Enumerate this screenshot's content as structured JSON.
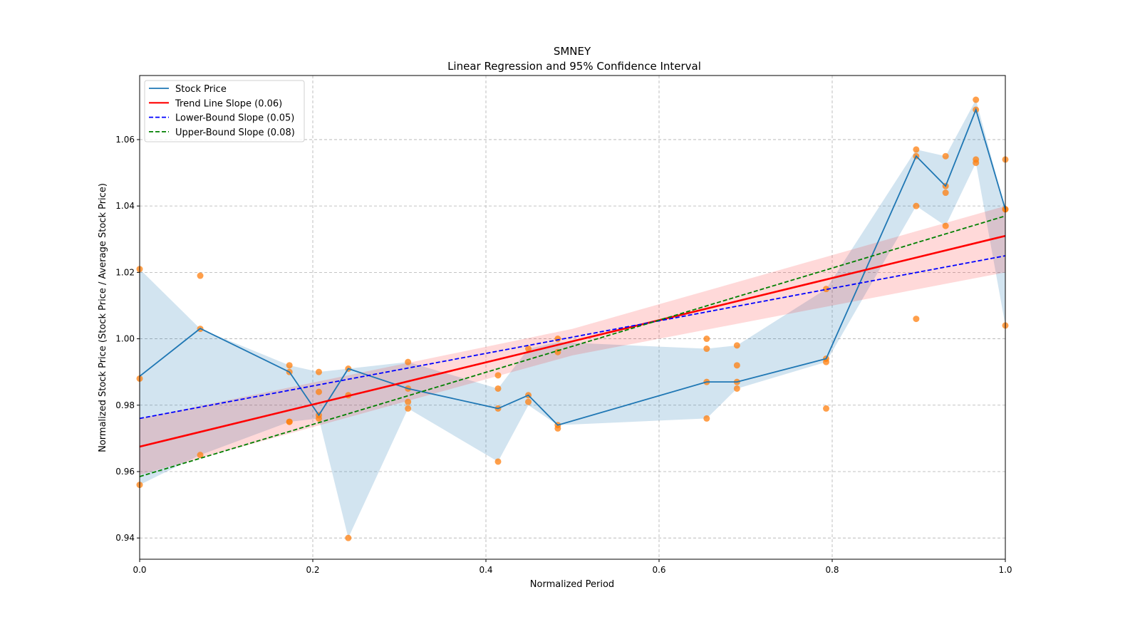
{
  "chart_data": {
    "type": "line",
    "title": "SMNEY",
    "subtitle": "Linear Regression and 95% Confidence Interval",
    "xlabel": "Normalized Period",
    "ylabel": "Normalized Stock Price (Stock Price / Average Stock Price)",
    "xlim": [
      0,
      1.0
    ],
    "ylim": [
      0.9336,
      1.0793
    ],
    "xticks": [
      "0.0",
      "0.2",
      "0.4",
      "0.6",
      "0.8",
      "1.0"
    ],
    "yticks": [
      "0.94",
      "0.96",
      "0.98",
      "1.00",
      "1.02",
      "1.04",
      "1.06"
    ],
    "grid": true,
    "legend_position": "top-left",
    "legend": [
      "Stock Price",
      "Trend Line Slope (0.06)",
      "Lower-Bound Slope (0.05)",
      "Upper-Bound Slope (0.08)"
    ],
    "colors": {
      "stock": "#1f77b4",
      "trend": "#ff0000",
      "lower": "#0000ff",
      "upper": "#008000",
      "points": "#ff7f0e"
    },
    "stock_price": {
      "x": [
        0,
        0.07,
        0.173,
        0.207,
        0.241,
        0.31,
        0.414,
        0.449,
        0.483,
        0.655,
        0.69,
        0.793,
        0.897,
        0.931,
        0.966,
        1.0
      ],
      "y": [
        0.9887,
        1.0031,
        0.99,
        0.977,
        0.991,
        0.985,
        0.979,
        0.983,
        0.974,
        0.987,
        0.987,
        0.994,
        1.055,
        1.046,
        1.069,
        1.039
      ],
      "band_lower": [
        0.956,
        0.965,
        0.975,
        0.976,
        0.94,
        0.979,
        0.963,
        0.98,
        0.974,
        0.976,
        0.985,
        0.993,
        1.04,
        1.034,
        1.053,
        1.004
      ],
      "band_upper": [
        1.021,
        1.003,
        0.992,
        0.99,
        0.991,
        0.993,
        0.985,
        0.997,
        0.999,
        0.997,
        0.998,
        1.015,
        1.057,
        1.055,
        1.072,
        1.039
      ]
    },
    "scatter_points": [
      [
        0,
        1.021
      ],
      [
        0,
        0.988
      ],
      [
        0,
        0.956
      ],
      [
        0.07,
        1.019
      ],
      [
        0.07,
        1.003
      ],
      [
        0.07,
        0.965
      ],
      [
        0.173,
        0.992
      ],
      [
        0.173,
        0.99
      ],
      [
        0.173,
        0.975
      ],
      [
        0.173,
        0.975
      ],
      [
        0.207,
        0.99
      ],
      [
        0.207,
        0.984
      ],
      [
        0.207,
        0.977
      ],
      [
        0.207,
        0.976
      ],
      [
        0.241,
        0.991
      ],
      [
        0.241,
        0.983
      ],
      [
        0.241,
        0.94
      ],
      [
        0.31,
        0.993
      ],
      [
        0.31,
        0.985
      ],
      [
        0.31,
        0.981
      ],
      [
        0.31,
        0.979
      ],
      [
        0.414,
        0.989
      ],
      [
        0.414,
        0.985
      ],
      [
        0.414,
        0.979
      ],
      [
        0.414,
        0.963
      ],
      [
        0.449,
        0.997
      ],
      [
        0.449,
        0.983
      ],
      [
        0.449,
        0.981
      ],
      [
        0.483,
        1.0
      ],
      [
        0.483,
        0.996
      ],
      [
        0.483,
        0.974
      ],
      [
        0.483,
        0.973
      ],
      [
        0.655,
        1.0
      ],
      [
        0.655,
        0.997
      ],
      [
        0.655,
        0.987
      ],
      [
        0.655,
        0.976
      ],
      [
        0.69,
        0.998
      ],
      [
        0.69,
        0.992
      ],
      [
        0.69,
        0.987
      ],
      [
        0.69,
        0.985
      ],
      [
        0.793,
        1.015
      ],
      [
        0.793,
        0.994
      ],
      [
        0.793,
        0.993
      ],
      [
        0.793,
        0.979
      ],
      [
        0.897,
        1.057
      ],
      [
        0.897,
        1.055
      ],
      [
        0.897,
        1.04
      ],
      [
        0.897,
        1.006
      ],
      [
        0.931,
        1.055
      ],
      [
        0.931,
        1.046
      ],
      [
        0.931,
        1.044
      ],
      [
        0.931,
        1.034
      ],
      [
        0.966,
        1.072
      ],
      [
        0.966,
        1.069
      ],
      [
        0.966,
        1.054
      ],
      [
        0.966,
        1.053
      ],
      [
        1.0,
        1.054
      ],
      [
        1.0,
        1.039
      ],
      [
        1.0,
        1.039
      ],
      [
        1.0,
        1.004
      ]
    ],
    "trend_line": {
      "y0": 0.9675,
      "y1": 1.031
    },
    "lower_bound_line": {
      "y0": 0.976,
      "y1": 1.025
    },
    "upper_bound_line": {
      "y0": 0.9585,
      "y1": 1.037
    },
    "trend_ci": {
      "x": [
        0,
        0.5,
        1.0
      ],
      "lower": [
        0.959,
        0.995,
        1.02
      ],
      "upper": [
        0.976,
        1.003,
        1.04
      ]
    }
  }
}
